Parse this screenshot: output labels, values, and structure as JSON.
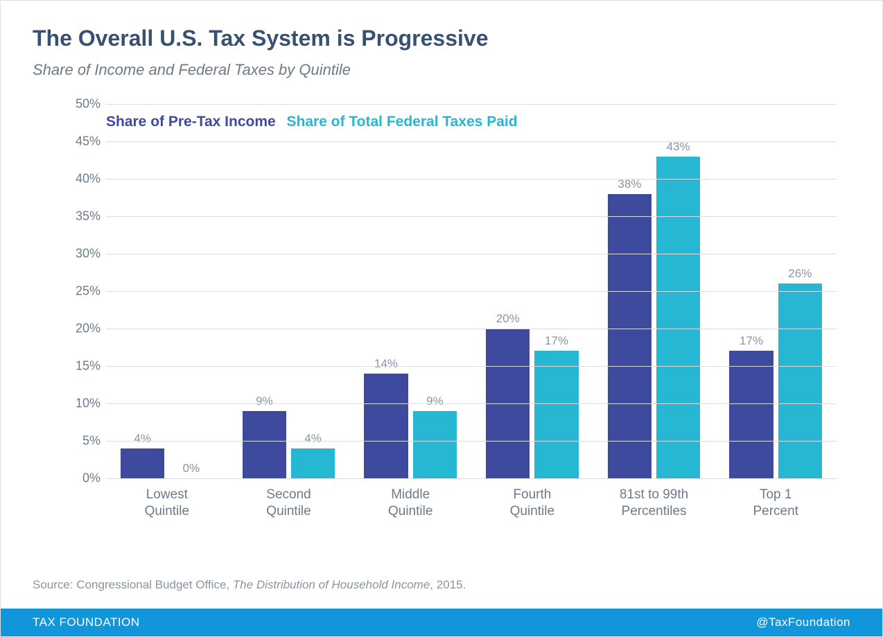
{
  "title": "The Overall U.S. Tax System is Progressive",
  "subtitle": "Share of Income and Federal Taxes by Quintile",
  "chart": {
    "type": "bar",
    "ylim": [
      0,
      50
    ],
    "ytick_step": 5,
    "yticks": [
      "0%",
      "5%",
      "10%",
      "15%",
      "20%",
      "25%",
      "30%",
      "35%",
      "40%",
      "45%",
      "50%"
    ],
    "grid_color": "#d9dde2",
    "background_color": "#ffffff",
    "tick_font_color": "#6c7a89",
    "tick_fontsize": 18,
    "legend": {
      "a": {
        "label": "Share of Pre-Tax Income",
        "color": "#3e4a9e"
      },
      "b": {
        "label": "Share of Total Federal Taxes Paid",
        "color": "#26b7d3"
      }
    },
    "bar_colors": {
      "a": "#3e4a9e",
      "b": "#26b7d3"
    },
    "bar_label_color": "#8a94a0",
    "bar_label_fontsize": 17,
    "categories": [
      {
        "label_l1": "Lowest",
        "label_l2": "Quintile",
        "a": 4,
        "a_label": "4%",
        "b": 0,
        "b_label": "0%"
      },
      {
        "label_l1": "Second",
        "label_l2": "Quintile",
        "a": 9,
        "a_label": "9%",
        "b": 4,
        "b_label": "4%"
      },
      {
        "label_l1": "Middle",
        "label_l2": "Quintile",
        "a": 14,
        "a_label": "14%",
        "b": 9,
        "b_label": "9%"
      },
      {
        "label_l1": "Fourth",
        "label_l2": "Quintile",
        "a": 20,
        "a_label": "20%",
        "b": 17,
        "b_label": "17%"
      },
      {
        "label_l1": "81st to 99th",
        "label_l2": "Percentiles",
        "a": 38,
        "a_label": "38%",
        "b": 43,
        "b_label": "43%"
      },
      {
        "label_l1": "Top 1",
        "label_l2": "Percent",
        "a": 17,
        "a_label": "17%",
        "b": 26,
        "b_label": "26%"
      }
    ],
    "xlabel_fontsize": 19,
    "xlabel_color": "#6c7a89"
  },
  "source": {
    "prefix": "Source: Congressional Budget Office, ",
    "italic": "The Distribution of Household Income",
    "suffix": ", 2015."
  },
  "footer": {
    "left": "TAX FOUNDATION",
    "right": "@TaxFoundation",
    "bg_color": "#1195db",
    "text_color": "#ffffff"
  }
}
